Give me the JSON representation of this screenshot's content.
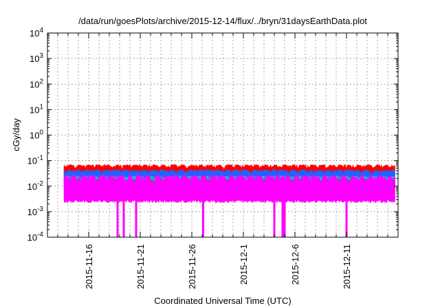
{
  "chart_data": {
    "type": "area",
    "title": "/data/run/goesPlots/archive/2015-12-14/flux/../bryn/31daysEarthData.plot",
    "xlabel": "Coordinated Universal Time (UTC)",
    "ylabel": "cGy/day",
    "x_range": [
      "2015-11-12",
      "2015-12-16"
    ],
    "yscale": "log",
    "ylim": [
      0.0001,
      10000
    ],
    "grid": true,
    "x_ticks": [
      {
        "date": "2015-11-16",
        "label": "2015-11-16"
      },
      {
        "date": "2015-11-21",
        "label": "2015-11-21"
      },
      {
        "date": "2015-11-26",
        "label": "2015-11-26"
      },
      {
        "date": "2015-12-01",
        "label": "2015-12-1"
      },
      {
        "date": "2015-12-06",
        "label": "2015-12-6"
      },
      {
        "date": "2015-12-11",
        "label": "2015-12-11"
      }
    ],
    "y_ticks": [
      {
        "value": 0.0001,
        "base": "10",
        "exp": "-4"
      },
      {
        "value": 0.001,
        "base": "10",
        "exp": "-3"
      },
      {
        "value": 0.01,
        "base": "10",
        "exp": "-2"
      },
      {
        "value": 0.1,
        "base": "10",
        "exp": "-1"
      },
      {
        "value": 1,
        "base": "10",
        "exp": "0"
      },
      {
        "value": 10,
        "base": "10",
        "exp": "1"
      },
      {
        "value": 100,
        "base": "10",
        "exp": "2"
      },
      {
        "value": 1000,
        "base": "10",
        "exp": "3"
      },
      {
        "value": 10000,
        "base": "10",
        "exp": "4"
      }
    ],
    "series": [
      {
        "color": "#ff0000",
        "low": 0.022,
        "high": 0.07
      },
      {
        "color": "#1e64ff",
        "low": 0.012,
        "high": 0.045
      },
      {
        "color": "#00c8c8",
        "low": 0.009,
        "high": 0.025
      },
      {
        "color": "#00a000",
        "low": 0.007,
        "high": 0.02
      },
      {
        "color": "#ff00ff",
        "low": 0.0022,
        "high": 0.028
      }
    ],
    "dropouts": [
      {
        "date": "2015-11-18.8",
        "value": 0.0001
      },
      {
        "date": "2015-11-19.4",
        "value": 0.0001
      },
      {
        "date": "2015-11-20.6",
        "value": 0.0001
      },
      {
        "date": "2015-11-27.1",
        "value": 0.0001
      },
      {
        "date": "2015-12-04.0",
        "value": 0.0001
      },
      {
        "date": "2015-12-04.8",
        "value": 0.0001
      },
      {
        "date": "2015-12-05.0",
        "value": 0.0001
      },
      {
        "date": "2015-12-11.0",
        "value": 0.0001
      }
    ]
  }
}
